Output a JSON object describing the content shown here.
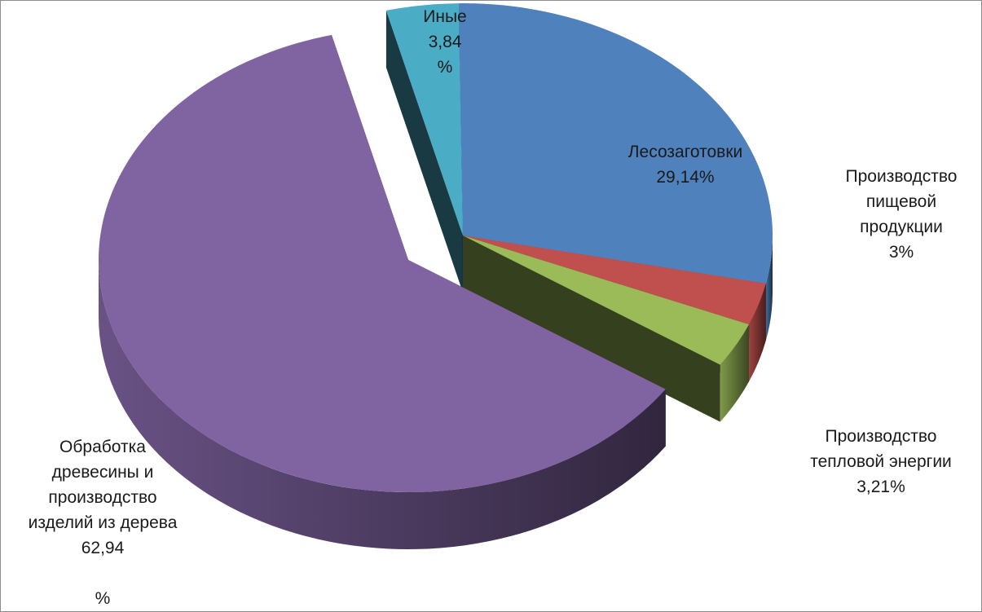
{
  "chart_data": {
    "type": "pie",
    "three_d": true,
    "exploded": true,
    "legend": "none",
    "slices": [
      {
        "key": "logging",
        "lines": [
          "Лесозаготовки",
          "29,14%"
        ],
        "value": 29.14,
        "color": "#4f81bd"
      },
      {
        "key": "food",
        "lines": [
          "Производство",
          "пищевой",
          "продукции",
          "3%"
        ],
        "value": 3.0,
        "color": "#c0504d"
      },
      {
        "key": "heat",
        "lines": [
          "Производство",
          "тепловой энергии",
          "3,21%"
        ],
        "value": 3.21,
        "color": "#9bbb59"
      },
      {
        "key": "wood",
        "lines": [
          "Обработка",
          "древесины и",
          "производство",
          "изделий из дерева",
          "62,94",
          "",
          "%"
        ],
        "value": 62.94,
        "color": "#8064a2"
      },
      {
        "key": "other",
        "lines": [
          "Иные",
          "3,84",
          "%"
        ],
        "value": 3.84,
        "color": "#4bacc6"
      }
    ]
  }
}
